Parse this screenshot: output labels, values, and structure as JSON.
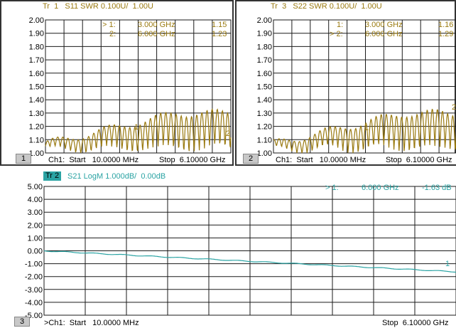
{
  "colors": {
    "trace_gold": "#9a7a10",
    "trace_teal": "#2aa3a3",
    "grid": "#1a1a1a",
    "badge_active_bg": "#2aa3a3",
    "footer_bg": "#c8c8c8"
  },
  "panes": [
    {
      "number": "1",
      "title": "Tr  1   S11 SWR 0.100U/  1.00U",
      "markers": [
        {
          "sel": "> 1:",
          "freq": "3.000 GHz",
          "value": "1.15"
        },
        {
          "sel": "2:",
          "freq": "6.000 GHz",
          "value": "1.23"
        }
      ],
      "y_ticks": [
        "2.00",
        "1.90",
        "1.80",
        "1.70",
        "1.60",
        "1.50",
        "1.40",
        "1.30",
        "1.20",
        "1.10",
        "1.00"
      ],
      "footer_start": "Ch1:  Start   10.0000 MHz",
      "footer_stop": "Stop  6.10000 GHz",
      "marker_flags": [
        "1",
        "2"
      ]
    },
    {
      "number": "2",
      "title": "Tr  3   S22 SWR 0.100U/  1.00U",
      "markers": [
        {
          "sel": "1:",
          "freq": "3.000 GHz",
          "value": "1.16"
        },
        {
          "sel": "> 2:",
          "freq": "6.000 GHz",
          "value": "1.29"
        }
      ],
      "y_ticks": [
        "2.00",
        "1.90",
        "1.80",
        "1.70",
        "1.60",
        "1.50",
        "1.40",
        "1.30",
        "1.20",
        "1.10",
        "1.00"
      ],
      "footer_start": "Ch1:  Start   10.0000 MHz",
      "footer_stop": "Stop  6.10000 GHz",
      "marker_flags": [
        "1",
        "2"
      ]
    },
    {
      "number": "3",
      "badge": "Tr  2",
      "title": "S21 LogM 1.000dB/  0.00dB",
      "markers": [
        {
          "sel": "> 1:",
          "freq": "6.000 GHz",
          "value": "-1.63 dB"
        }
      ],
      "y_ticks": [
        "5.00",
        "4.00",
        "3.00",
        "2.00",
        "1.00",
        "0.00",
        "-1.00",
        "-2.00",
        "-3.00",
        "-4.00",
        "-5.00"
      ],
      "footer_start": ">Ch1:  Start   10.0000 MHz",
      "footer_stop": "Stop  6.10000 GHz",
      "marker_flags": [
        "1"
      ]
    }
  ]
}
